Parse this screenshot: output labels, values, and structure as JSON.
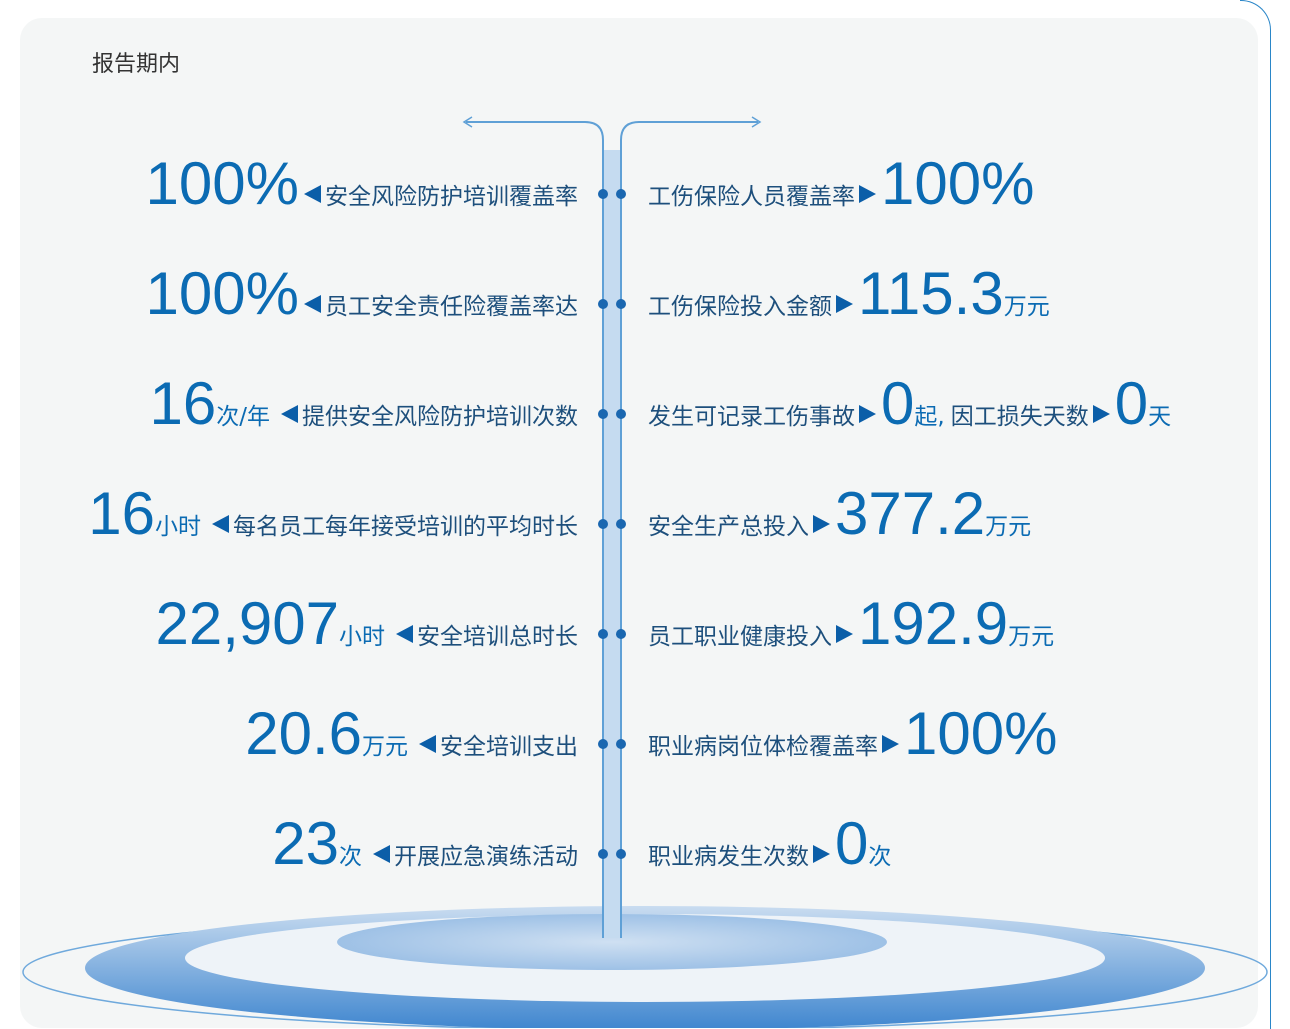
{
  "header": {
    "title": "报告期内"
  },
  "left": [
    {
      "value": "100%",
      "unit": "",
      "label": "安全风险防护培训覆盖率"
    },
    {
      "value": "100%",
      "unit": "",
      "label": "员工安全责任险覆盖率达"
    },
    {
      "value": "16",
      "unit": "次/年",
      "label": "提供安全风险防护培训次数"
    },
    {
      "value": "16",
      "unit": "小时",
      "label": "每名员工每年接受培训的平均时长"
    },
    {
      "value": "22,907",
      "unit": "小时",
      "label": "安全培训总时长"
    },
    {
      "value": "20.6",
      "unit": "万元",
      "label": "安全培训支出"
    },
    {
      "value": "23",
      "unit": "次",
      "label": "开展应急演练活动"
    }
  ],
  "right": [
    {
      "parts": [
        {
          "label": "工伤保险人员覆盖率",
          "value": "100%",
          "unit": ""
        }
      ]
    },
    {
      "parts": [
        {
          "label": "工伤保险投入金额",
          "value": "115.3",
          "unit": "万元"
        }
      ]
    },
    {
      "parts": [
        {
          "label": "发生可记录工伤事故",
          "value": "0",
          "unit": "起,"
        },
        {
          "label": "因工损失天数",
          "value": "0",
          "unit": "天"
        }
      ]
    },
    {
      "parts": [
        {
          "label": "安全生产总投入",
          "value": "377.2",
          "unit": "万元"
        }
      ]
    },
    {
      "parts": [
        {
          "label": "员工职业健康投入",
          "value": "192.9",
          "unit": "万元"
        }
      ]
    },
    {
      "parts": [
        {
          "label": "职业病岗位体检覆盖率",
          "value": "100%",
          "unit": ""
        }
      ]
    },
    {
      "parts": [
        {
          "label": "职业病发生次数",
          "value": "0",
          "unit": "次"
        }
      ]
    }
  ]
}
